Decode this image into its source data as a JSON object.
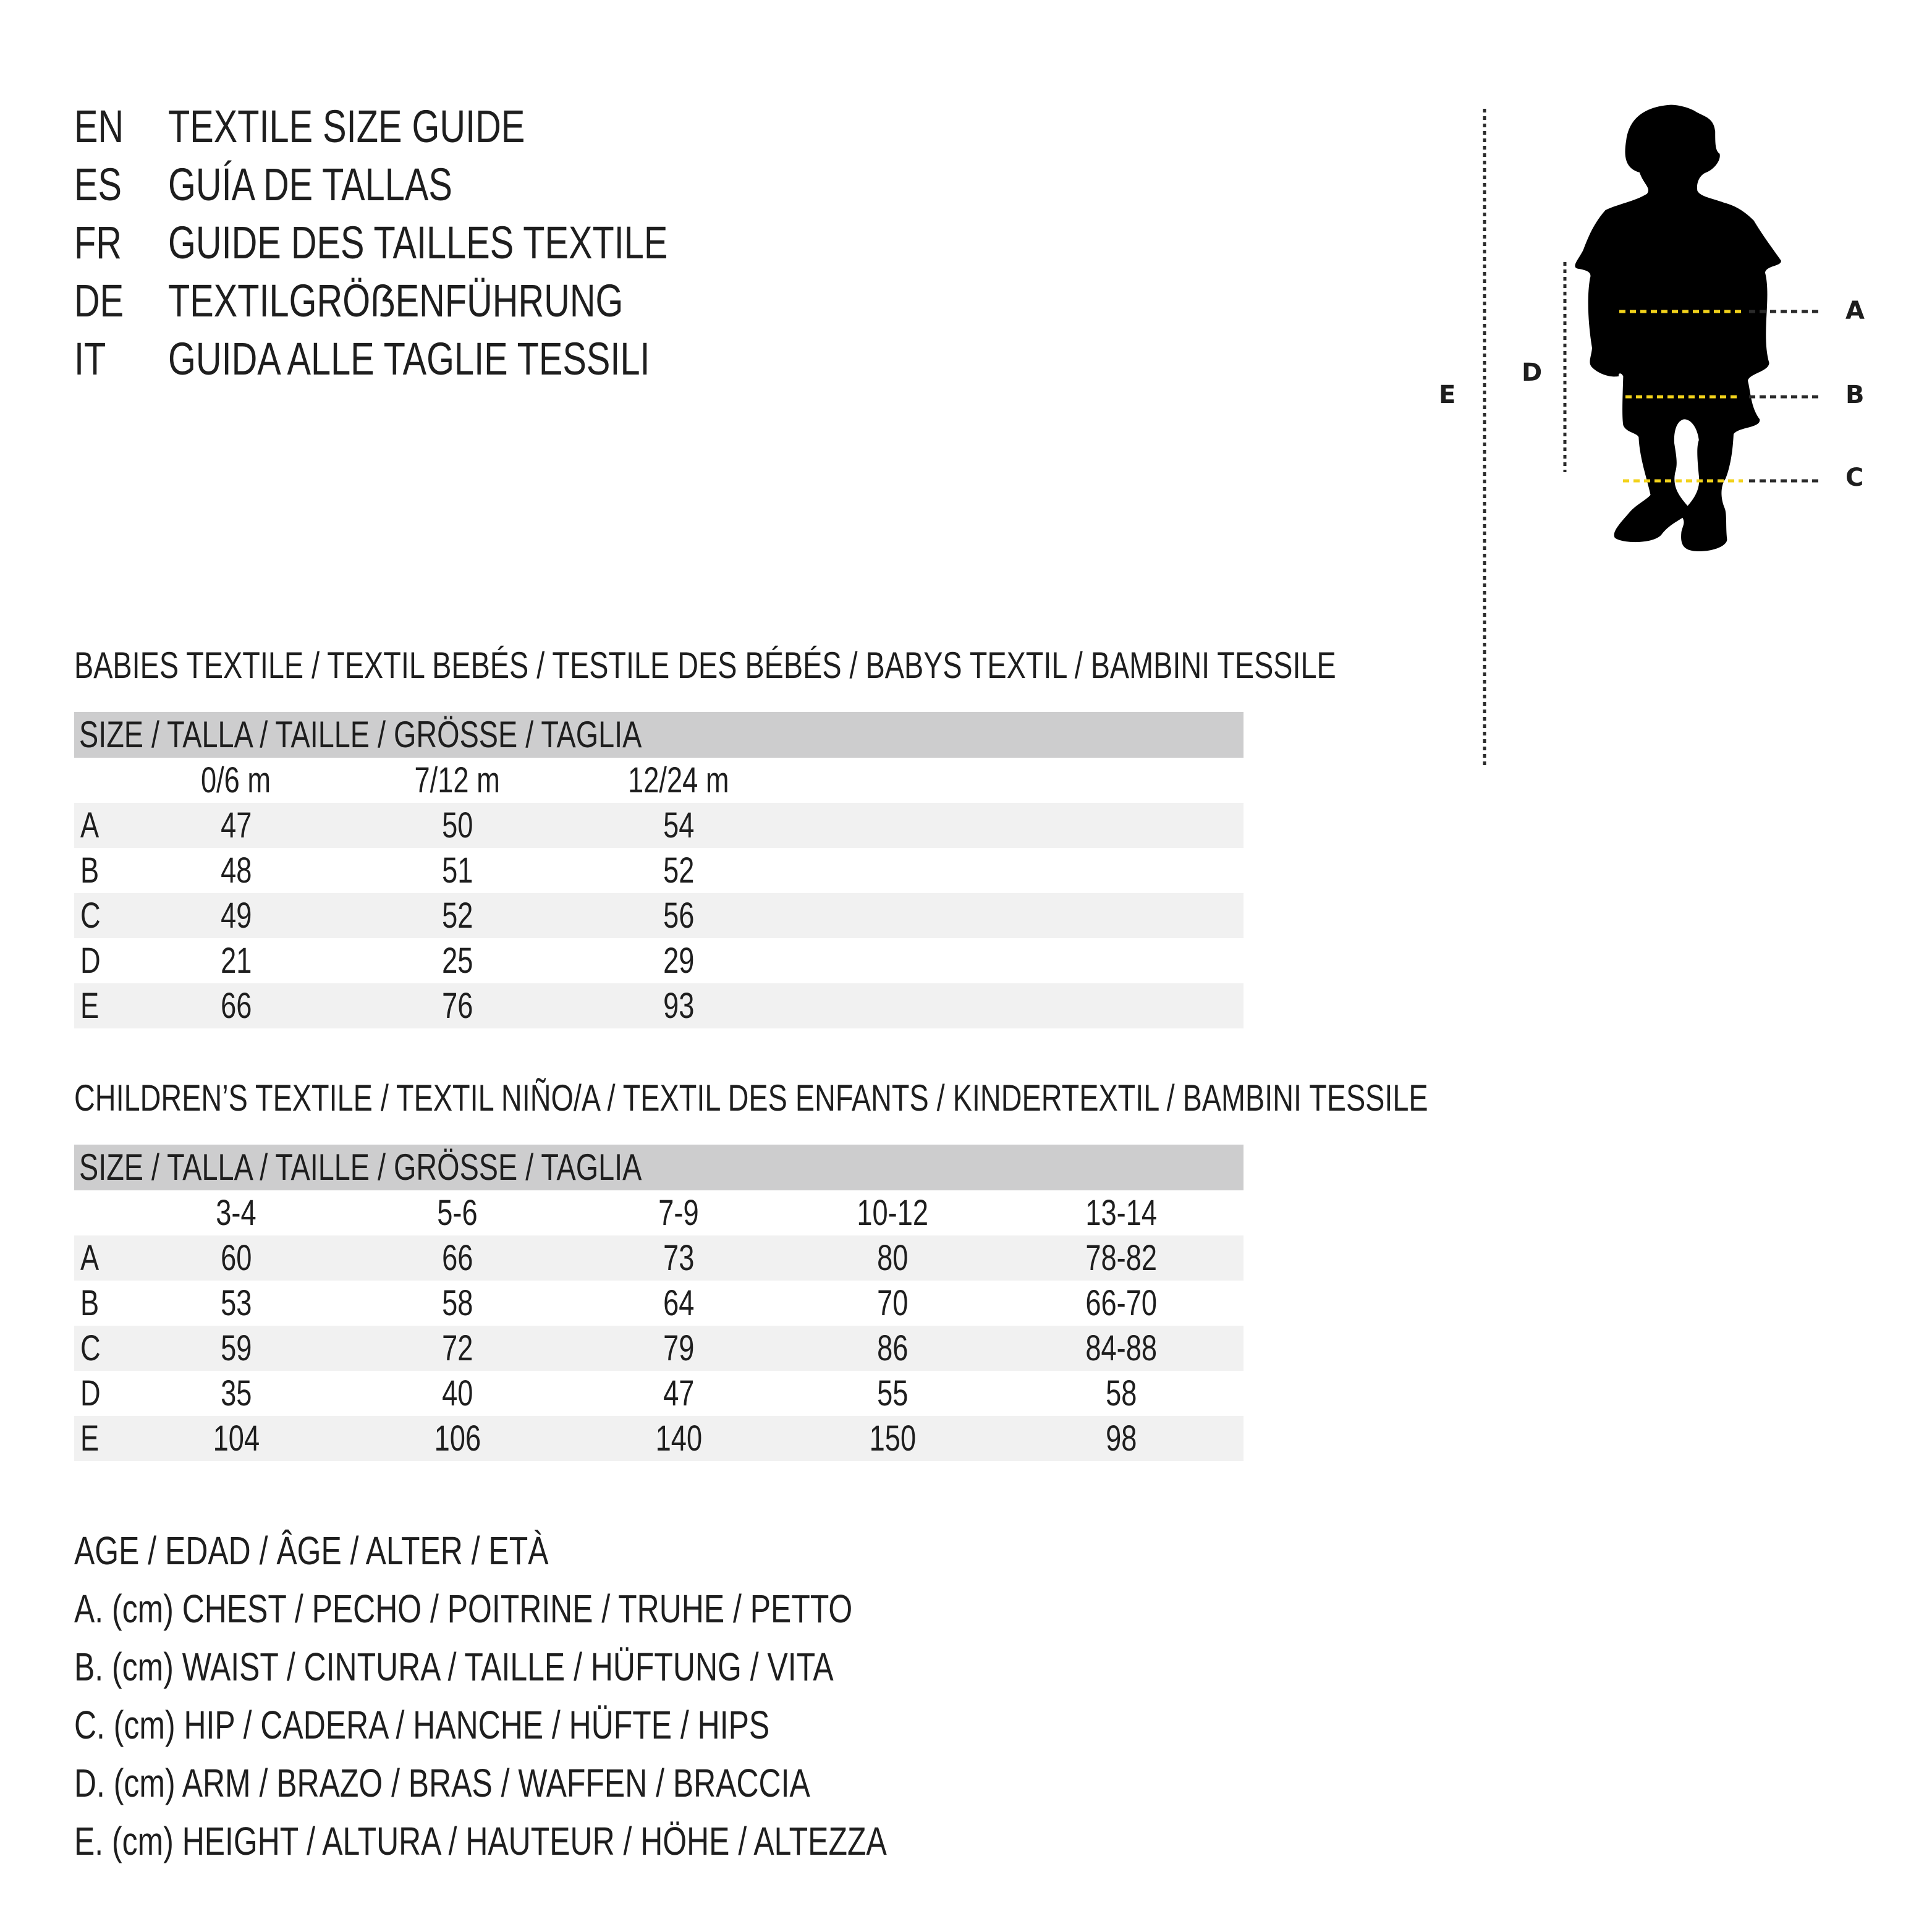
{
  "titles": [
    {
      "code": "EN",
      "text": "TEXTILE SIZE GUIDE"
    },
    {
      "code": "ES",
      "text": "GUÍA DE TALLAS"
    },
    {
      "code": "FR",
      "text": "GUIDE DES TAILLES TEXTILE"
    },
    {
      "code": "DE",
      "text": "TEXTILGRÖẞENFÜHRUNG"
    },
    {
      "code": "IT",
      "text": "GUIDA ALLE TAGLIE TESSILI"
    }
  ],
  "babies": {
    "heading": "BABIES TEXTILE / TEXTIL BEBÉS / TESTILE DES BÉBÉS / BABYS TEXTIL / BAMBINI TESSILE",
    "size_header": "SIZE / TALLA / TAILLE / GRÖSSE / TAGLIA",
    "columns": [
      "0/6 m",
      "7/12 m",
      "12/24 m"
    ],
    "rows": [
      {
        "label": "A",
        "values": [
          "47",
          "50",
          "54"
        ]
      },
      {
        "label": "B",
        "values": [
          "48",
          "51",
          "52"
        ]
      },
      {
        "label": "C",
        "values": [
          "49",
          "52",
          "56"
        ]
      },
      {
        "label": "D",
        "values": [
          "21",
          "25",
          "29"
        ]
      },
      {
        "label": "E",
        "values": [
          "66",
          "76",
          "93"
        ]
      }
    ]
  },
  "children": {
    "heading": "CHILDREN’S TEXTILE / TEXTIL NIÑO/A / TEXTIL DES ENFANTS / KINDERTEXTIL / BAMBINI TESSILE",
    "size_header": "SIZE / TALLA / TAILLE / GRÖSSE / TAGLIA",
    "columns": [
      "3-4",
      "5-6",
      "7-9",
      "10-12",
      "13-14"
    ],
    "rows": [
      {
        "label": "A",
        "values": [
          "60",
          "66",
          "73",
          "80",
          "78-82"
        ]
      },
      {
        "label": "B",
        "values": [
          "53",
          "58",
          "64",
          "70",
          "66-70"
        ]
      },
      {
        "label": "C",
        "values": [
          "59",
          "72",
          "79",
          "86",
          "84-88"
        ]
      },
      {
        "label": "D",
        "values": [
          "35",
          "40",
          "47",
          "55",
          "58"
        ]
      },
      {
        "label": "E",
        "values": [
          "104",
          "106",
          "140",
          "150",
          "98"
        ]
      }
    ]
  },
  "legend": [
    "AGE / EDAD / ÂGE / ALTER / ETÀ",
    "A. (cm) CHEST / PECHO / POITRINE / TRUHE / PETTO",
    "B. (cm) WAIST / CINTURA / TAILLE / HÜFTUNG / VITA",
    "C. (cm) HIP / CADERA / HANCHE / HÜFTE / HIPS",
    "D. (cm) ARM / BRAZO / BRAS / WAFFEN / BRACCIA",
    "E. (cm) HEIGHT / ALTURA / HAUTEUR / HÖHE / ALTEZZA"
  ],
  "figure": {
    "labels": {
      "a": "A",
      "b": "B",
      "c": "C",
      "d": "D",
      "e": "E"
    },
    "icon": "child-silhouette-icon",
    "measure_line_color": "#f2d21b",
    "guide_line_color": "#2a2a2a"
  }
}
